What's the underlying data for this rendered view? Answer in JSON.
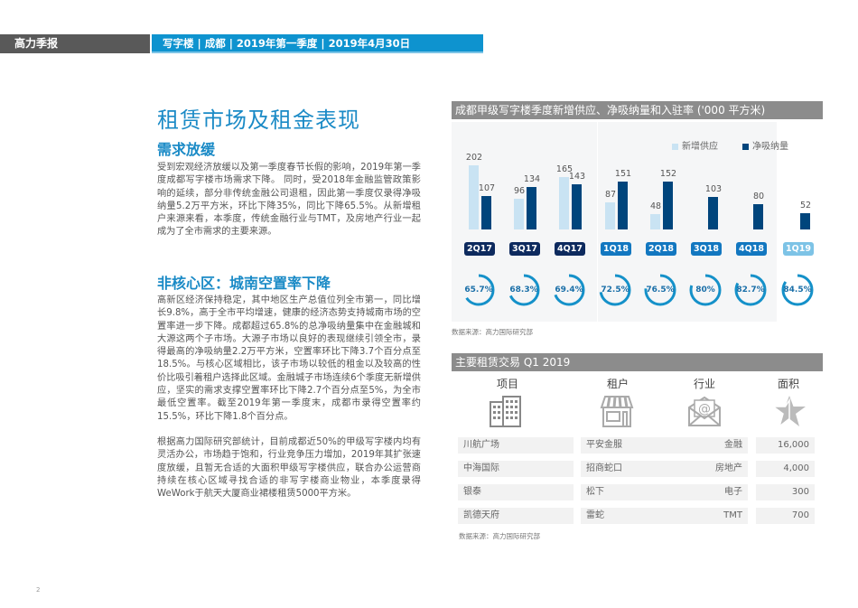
{
  "header": {
    "brand": "高力季报",
    "breadcrumb": "写字楼  |  成都  | 2019年第一季度 |  2019年4月30日"
  },
  "article": {
    "title": "租赁市场及租金表现",
    "sections": [
      {
        "heading": "需求放缓",
        "paragraphs": [
          "受到宏观经济放缓以及第一季度春节长假的影响，2019年第一季度成都写字楼市场需求下降。 同时，受2018年金融监管政策影响的延续，部分非传统金融公司退租，因此第一季度仅录得净吸纳量5.2万平方米，环比下降35%，同比下降65.5%。从新增租户来源来看，本季度，传统金融行业与TMT，及房地产行业一起成为了全市需求的主要来源。"
        ]
      },
      {
        "heading": "非核心区：城南空置率下降",
        "paragraphs": [
          "高新区经济保持稳定，其中地区生产总值位列全市第一，同比增长9.8%，高于全市平均增速，健康的经济态势支持城南市场的空置率进一步下降。成都超过65.8%的总净吸纳量集中在金融城和大源这两个子市场。大源子市场以良好的表现继续引领全市，录得最高的净吸纳量2.2万平方米，空置率环比下降3.7个百分点至18.5%。与核心区域相比，该子市场以较低的租金以及较高的性价比吸引着租户选择此区域。金融城子市场连续6个季度无新增供应，坚实的需求支撑空置率环比下降2.7个百分点至5%，为全市最低空置率。截至2019年第一季度末，成都市录得空置率约15.5%，环比下降1.8个百分点。",
          "根据高力国际研究部统计，目前成都近50%的甲级写字楼内均有灵活办公，市场趋于饱和，行业竞争压力增加，2019年其扩张速度放缓，且暂无合适的大面积甲级写字楼供应，联合办公运营商持续在核心区域寻找合适的非写字楼商业物业，本季度录得WeWork于航天大厦商业裙楼租赁5000平方米。"
        ]
      }
    ]
  },
  "chart_panel": {
    "title": "成都甲级写字楼季度新增供应、净吸纳量和入驻率 ('000 平方米)",
    "source": "数据来源：高力国际研究部"
  },
  "chart_data": {
    "type": "bar",
    "title": "成都甲级写字楼季度新增供应、净吸纳量和入驻率 ('000 平方米)",
    "categories": [
      "2Q17",
      "3Q17",
      "4Q17",
      "1Q18",
      "2Q18",
      "3Q18",
      "4Q18",
      "1Q19"
    ],
    "series": [
      {
        "name": "新增供应",
        "color": "#c9e3f3",
        "values": [
          202,
          96,
          165,
          87,
          48,
          0,
          0,
          0
        ]
      },
      {
        "name": "净吸纳量",
        "color": "#00457c",
        "values": [
          107,
          134,
          143,
          151,
          152,
          103,
          80,
          52
        ]
      }
    ],
    "occupancy_rate": [
      "65.7%",
      "68.3%",
      "69.4%",
      "72.5%",
      "76.5%",
      "80%",
      "82.7%",
      "84.5%"
    ],
    "occupancy_values": [
      65.7,
      68.3,
      69.4,
      72.5,
      76.5,
      80,
      82.7,
      84.5
    ],
    "label_colors": [
      "#0d2a5e",
      "#0d2a5e",
      "#0d2a5e",
      "#1277c0",
      "#1277c0",
      "#1277c0",
      "#1277c0",
      "#7dc3e6"
    ],
    "legend_position": "top-right",
    "grid": false,
    "ylabel": "'000 平方米"
  },
  "deals_panel": {
    "title": "主要租赁交易 Q1 2019",
    "columns": [
      "项目",
      "租户",
      "行业",
      "面积"
    ],
    "icons": [
      "building-icon",
      "storefront-icon",
      "email-icon",
      "star-icon"
    ],
    "rows": [
      {
        "project": "川航广场",
        "tenant": "平安金服",
        "industry": "金融",
        "area": "16,000"
      },
      {
        "project": "中海国际",
        "tenant": "招商蛇口",
        "industry": "房地产",
        "area": "4,000"
      },
      {
        "project": "银泰",
        "tenant": "松下",
        "industry": "电子",
        "area": "300"
      },
      {
        "project": "凯德天府",
        "tenant": "雷蛇",
        "industry": "TMT",
        "area": "700"
      }
    ],
    "source": "数据来源：高力国际研究部"
  },
  "page_number": "2"
}
